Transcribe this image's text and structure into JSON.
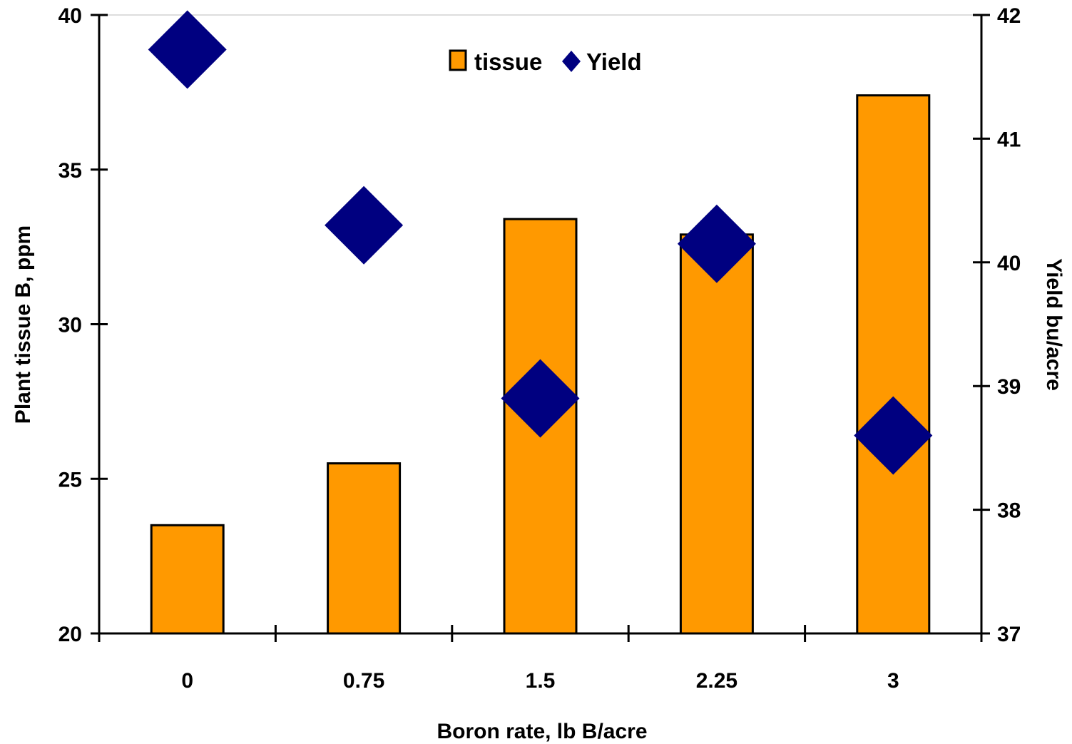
{
  "chart_data": {
    "type": "bar",
    "categories": [
      "0",
      "0.75",
      "1.5",
      "2.25",
      "3"
    ],
    "series": [
      {
        "name": "tissue",
        "type": "bar",
        "axis": "left",
        "color": "#FF9900",
        "values": [
          23.5,
          25.5,
          33.4,
          32.9,
          37.4
        ]
      },
      {
        "name": "Yield",
        "type": "scatter",
        "marker": "diamond",
        "axis": "right",
        "color": "#000080",
        "values": [
          41.72,
          40.3,
          38.9,
          40.15,
          38.6
        ]
      }
    ],
    "xlabel": "Boron rate, lb B/acre",
    "ylabel": "Plant tissue B, ppm",
    "y2label": "Yield bu/acre",
    "ylim": [
      20,
      40
    ],
    "yticks": [
      "20",
      "25",
      "30",
      "35",
      "40"
    ],
    "y2lim": [
      37,
      42
    ],
    "y2ticks": [
      "37",
      "38",
      "39",
      "40",
      "41",
      "42"
    ],
    "legend": {
      "position": "top-center",
      "entries": [
        "tissue",
        "Yield"
      ]
    },
    "grid": false
  }
}
